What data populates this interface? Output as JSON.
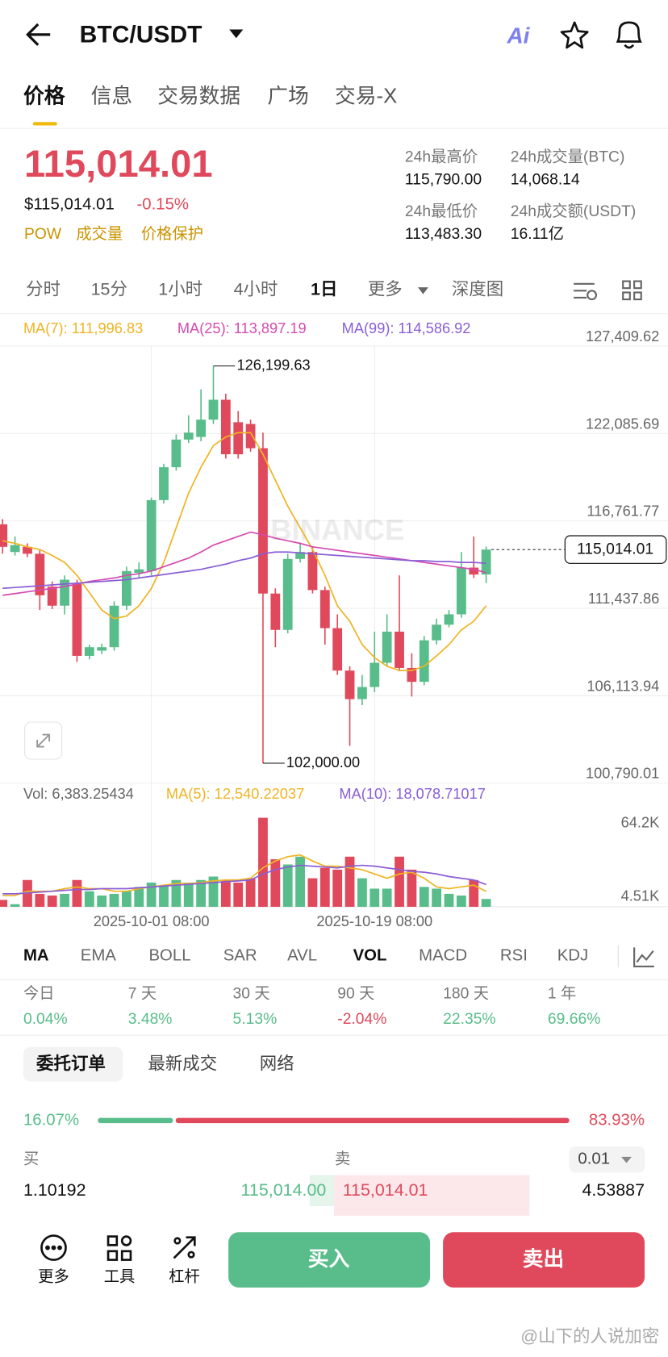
{
  "header": {
    "pair": "BTC/USDT",
    "ai_badge": "Ai"
  },
  "tabs": [
    "价格",
    "信息",
    "交易数据",
    "广场",
    "交易-X"
  ],
  "price": {
    "last": "115,014.01",
    "usd": "$115,014.01",
    "change": "-0.15%",
    "tags": [
      "POW",
      "成交量",
      "价格保护"
    ]
  },
  "stats": [
    {
      "label": "24h最高价",
      "value": "115,790.00"
    },
    {
      "label": "24h成交量(BTC)",
      "value": "14,068.14"
    },
    {
      "label": "24h最低价",
      "value": "113,483.30"
    },
    {
      "label": "24h成交额(USDT)",
      "value": "16.11亿"
    }
  ],
  "intervals": [
    "分时",
    "15分",
    "1小时",
    "4小时",
    "1日",
    "更多",
    "深度图"
  ],
  "chart_data": [
    {
      "type": "candlestick",
      "up_color": "#58bd8a",
      "down_color": "#e0495b",
      "watermark": "BINANCE",
      "ylim": [
        100790.01,
        127409.62
      ],
      "yticks": [
        {
          "value": 127409.62,
          "label": "127,409.62"
        },
        {
          "value": 122085.69,
          "label": "122,085.69"
        },
        {
          "value": 116761.77,
          "label": "116,761.77"
        },
        {
          "value": 111437.86,
          "label": "111,437.86"
        },
        {
          "value": 106113.94,
          "label": "106,113.94"
        },
        {
          "value": 100790.01,
          "label": "100,790.01"
        }
      ],
      "last_price_label": "115,014.01",
      "open": [
        116552,
        114865,
        115181,
        114760,
        112757,
        111597,
        112915,
        108540,
        108856,
        109067,
        111597,
        113600,
        113705,
        118028,
        120031,
        121717,
        121875,
        122930,
        124142,
        122772,
        122666,
        121190,
        112335,
        110121,
        114443,
        114865,
        112546,
        110227,
        107644,
        105904,
        106642,
        108118,
        110016,
        107802,
        106959,
        109489,
        110437,
        111070,
        113916,
        113495
      ],
      "high": [
        116868,
        115814,
        115392,
        114970,
        113073,
        113442,
        113178,
        109225,
        109278,
        111861,
        113969,
        114232,
        118186,
        120241,
        122034,
        123193,
        124774,
        126199.63,
        124511,
        123457,
        122930,
        122139,
        112651,
        114760,
        115392,
        115181,
        112757,
        111070,
        107907,
        107380,
        110016,
        111070,
        113442,
        108698,
        109752,
        110806,
        111333,
        114865,
        115814,
        115200
      ],
      "low": [
        114760,
        114654,
        114549,
        111333,
        111386,
        111070,
        108171,
        108329,
        108645,
        108856,
        111333,
        113284,
        113442,
        117817,
        119820,
        121506,
        121612,
        122666,
        120558,
        120558,
        120979,
        102000,
        109067,
        109910,
        114232,
        112335,
        109225,
        107380,
        103058,
        105535,
        106326,
        107907,
        107644,
        106062,
        106748,
        109225,
        110279,
        110859,
        113284,
        112967
      ],
      "close": [
        115181,
        115287,
        114760,
        112230,
        111597,
        113178,
        108540,
        109067,
        109067,
        111597,
        113705,
        113811,
        118028,
        120031,
        121717,
        122139,
        122930,
        124142,
        120821,
        120821,
        121190,
        112335,
        110121,
        114443,
        114865,
        112546,
        110227,
        107644,
        105904,
        106642,
        108118,
        110016,
        107802,
        106959,
        109489,
        110437,
        111070,
        113916,
        113495,
        115014.01
      ],
      "high_value_labels": [
        null,
        null,
        null,
        null,
        null,
        null,
        null,
        null,
        null,
        null,
        null,
        null,
        null,
        null,
        null,
        null,
        null,
        "126,199.63",
        null,
        null,
        null,
        null,
        null,
        null,
        null,
        null,
        null,
        null,
        null,
        null,
        null,
        null,
        null,
        null,
        null,
        null,
        null,
        null,
        null,
        null
      ],
      "low_value_labels": [
        null,
        null,
        null,
        null,
        null,
        null,
        null,
        null,
        null,
        null,
        null,
        null,
        null,
        null,
        null,
        null,
        null,
        null,
        null,
        null,
        null,
        "102,000.00",
        null,
        null,
        null,
        null,
        null,
        null,
        null,
        null,
        null,
        null,
        null,
        null,
        null,
        null,
        null,
        null,
        null,
        null
      ],
      "series": [
        {
          "name": "MA(7): 111,996.83",
          "color": "#efb423",
          "values": [
            115550,
            115392,
            115181,
            115023,
            114654,
            114232,
            113442,
            112388,
            111333,
            110806,
            110965,
            111597,
            112651,
            114232,
            116341,
            118449,
            120031,
            121348,
            121875,
            122139,
            122139,
            120821,
            119240,
            117659,
            116341,
            115023,
            113442,
            111597,
            110648,
            109225,
            108434,
            107907,
            107644,
            107644,
            107907,
            108540,
            109225,
            110121,
            110648,
            111597
          ]
        },
        {
          "name": "MA(25): 113,897.19",
          "color": "#d44bb0",
          "values": [
            112230,
            112335,
            112441,
            112546,
            112651,
            112757,
            112915,
            113073,
            113178,
            113284,
            113442,
            113547,
            113705,
            113969,
            114232,
            114496,
            114865,
            115287,
            115550,
            115814,
            116077,
            115919,
            115708,
            115550,
            115392,
            115181,
            115076,
            114970,
            114865,
            114760,
            114654,
            114549,
            114443,
            114338,
            114232,
            114127,
            114021,
            113916,
            113811,
            113600
          ]
        },
        {
          "name": "MA(99): 114,586.92",
          "color": "#8a5ed6",
          "values": [
            112651,
            112704,
            112757,
            112809,
            112862,
            112915,
            112967,
            113020,
            113073,
            113126,
            113178,
            113284,
            113389,
            113495,
            113600,
            113705,
            113811,
            113969,
            114127,
            114338,
            114496,
            114760,
            114865,
            114865,
            114812,
            114760,
            114707,
            114654,
            114601,
            114549,
            114496,
            114443,
            114391,
            114338,
            114338,
            114285,
            114285,
            114232,
            114232,
            114180
          ]
        }
      ]
    },
    {
      "type": "bar",
      "categories": [
        null,
        null,
        null,
        null,
        null,
        null,
        null,
        null,
        null,
        null,
        null,
        null,
        "2025-10-01 08:00",
        null,
        null,
        null,
        null,
        null,
        null,
        null,
        null,
        null,
        null,
        null,
        null,
        null,
        null,
        null,
        null,
        null,
        "2025-10-19 08:00",
        null,
        null,
        null,
        null,
        null,
        null,
        null,
        null,
        null
      ],
      "ylim": [
        0,
        78000
      ],
      "yticks": [
        {
          "value": 64200,
          "label": "64.2K"
        },
        {
          "value": 4510,
          "label": "4.51K"
        }
      ],
      "series": [
        {
          "name": "Vol: 6,383.25434",
          "values": [
            5616,
            2106,
            21762,
            10530,
            9126,
            10530,
            21762,
            12636,
            9126,
            10530,
            12636,
            16146,
            19656,
            17550,
            21762,
            19656,
            21762,
            24570,
            21762,
            19656,
            23166,
            72306,
            38610,
            34398,
            40716,
            23166,
            31590,
            30186,
            40716,
            23166,
            14742,
            14742,
            40716,
            30186,
            16146,
            14742,
            10530,
            9126,
            21762,
            6383.25434
          ]
        },
        {
          "name": "MA(5): 12,540.22037",
          "color": "#efb423",
          "values": [
            9126,
            9126,
            12636,
            12636,
            12636,
            14742,
            16146,
            14742,
            14742,
            12636,
            12636,
            14742,
            16146,
            17550,
            18954,
            18954,
            19656,
            21060,
            21762,
            21762,
            23166,
            31590,
            37206,
            40716,
            42120,
            37206,
            32994,
            32994,
            31590,
            30186,
            26676,
            23166,
            26676,
            28080,
            23166,
            16146,
            14742,
            16146,
            17550,
            12540.22037
          ]
        },
        {
          "name": "MA(10): 18,078.71017",
          "color": "#8a5ed6",
          "values": [
            10530,
            10530,
            11232,
            11934,
            12636,
            13338,
            14040,
            14040,
            14742,
            14742,
            14742,
            15444,
            16146,
            16848,
            17550,
            18252,
            18954,
            19656,
            20358,
            21060,
            21762,
            26676,
            30186,
            32292,
            33696,
            32994,
            32292,
            31590,
            32994,
            33696,
            32994,
            31590,
            30186,
            28782,
            28080,
            26676,
            24570,
            23166,
            21762,
            18078.71017
          ]
        }
      ]
    }
  ],
  "indicators": [
    "MA",
    "EMA",
    "BOLL",
    "SAR",
    "AVL",
    "VOL",
    "MACD",
    "RSI",
    "KDJ"
  ],
  "performance": [
    {
      "label": "今日",
      "value": "0.04%"
    },
    {
      "label": "7 天",
      "value": "3.48%"
    },
    {
      "label": "30 天",
      "value": "5.13%"
    },
    {
      "label": "90 天",
      "value": "-2.04%"
    },
    {
      "label": "180 天",
      "value": "22.35%"
    },
    {
      "label": "1 年",
      "value": "69.66%"
    }
  ],
  "orderbook_tabs": [
    "委托订单",
    "最新成交",
    "网络"
  ],
  "orderbook": {
    "buy_pct": "16.07%",
    "sell_pct": "83.93%",
    "buy_label": "买",
    "sell_label": "卖",
    "step": "0.01",
    "row": {
      "bid_qty": "1.10192",
      "bid_price": "115,014.00",
      "ask_price": "115,014.01",
      "ask_qty": "4.53887"
    }
  },
  "bottom": {
    "items": [
      "更多",
      "工具",
      "杠杆"
    ],
    "buy": "买入",
    "sell": "卖出"
  },
  "watermark": "@山下的人说加密"
}
